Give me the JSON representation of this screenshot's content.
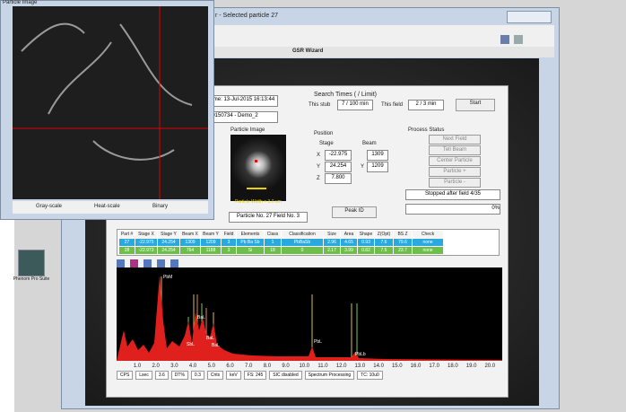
{
  "particle_window": {
    "title": "Particle Image",
    "options": [
      "Gray-scale",
      "Heat-scale",
      "Binary"
    ]
  },
  "main_window": {
    "title": "r - Selected particle 27",
    "wizard_title": "GSR Wizard"
  },
  "run_info": {
    "time": "Time: 13-Jul-2015 16:13:44",
    "project": "20150734 - Demo_2"
  },
  "search_times": {
    "heading": "Search Times ( / Limit)",
    "stub_label": "This stub",
    "stub_value": "7 / 100 min",
    "field_label": "This field",
    "field_value": "2 / 3 min",
    "start": "Start"
  },
  "particle_image": {
    "heading": "Particle Image",
    "width": "Particle Width = 3.0 um",
    "particle_no": "Particle No. 27 Field No. 3"
  },
  "position": {
    "heading": "Position",
    "stage": "Stage",
    "beam": "Beam",
    "x": "X",
    "y": "Y",
    "z": "Z",
    "stage_x": "-22.975",
    "stage_y": "24.254",
    "stage_z": "7.800",
    "beam_x": "1309",
    "beam_y": "1209"
  },
  "peak_id": "Peak ID",
  "process_status": {
    "heading": "Process Status",
    "buttons": [
      "Next Field",
      "Tell Beam",
      "Center Particle",
      "Particle +",
      "Particle -"
    ],
    "status": "Stopped after field 4/35",
    "progress": "0%"
  },
  "table": {
    "columns": [
      "Part #",
      "Stage X",
      "Stage Y",
      "Beam X",
      "Beam Y",
      "Field",
      "Elements",
      "Class",
      "Classification",
      "Size",
      "Area",
      "Shape",
      "Z(Opt)",
      "BS Z",
      "Check"
    ],
    "rows": [
      [
        "27",
        "-22.975",
        "24.254",
        "1309",
        "1209",
        "3",
        "Pb Ba Sb",
        "1",
        "PbBaSb",
        "2.96",
        "4.65",
        "0.93",
        "7.6",
        "79.6",
        "none"
      ],
      [
        "28",
        "-22.973",
        "24.254",
        "764",
        "1188",
        "3",
        "Si",
        "18",
        "0",
        "2.17",
        "3.99",
        "0.82",
        "7.5",
        "23.7",
        "none"
      ]
    ]
  },
  "spectrum": {
    "peaks": [
      "PbM",
      "BaL",
      "SbL",
      "BaL",
      "BaL",
      "PbL",
      "PbLb"
    ],
    "ticks": [
      "1.0",
      "2.0",
      "3.0",
      "4.0",
      "5.0",
      "6.0",
      "7.0",
      "8.0",
      "9.0",
      "10.0",
      "11.0",
      "12.0",
      "13.0",
      "14.0",
      "15.0",
      "16.0",
      "17.0",
      "18.0",
      "19.0",
      "20.0"
    ]
  },
  "status_bar": [
    "CPS",
    "Lsec",
    "3.6",
    "DT%",
    "0.3",
    "Cnts",
    "keV",
    "FS: 245",
    "SIC disabled",
    "Spectrum Processing",
    "TC: 10u0"
  ],
  "desktop_icon": "Phenom Pro Suite"
}
